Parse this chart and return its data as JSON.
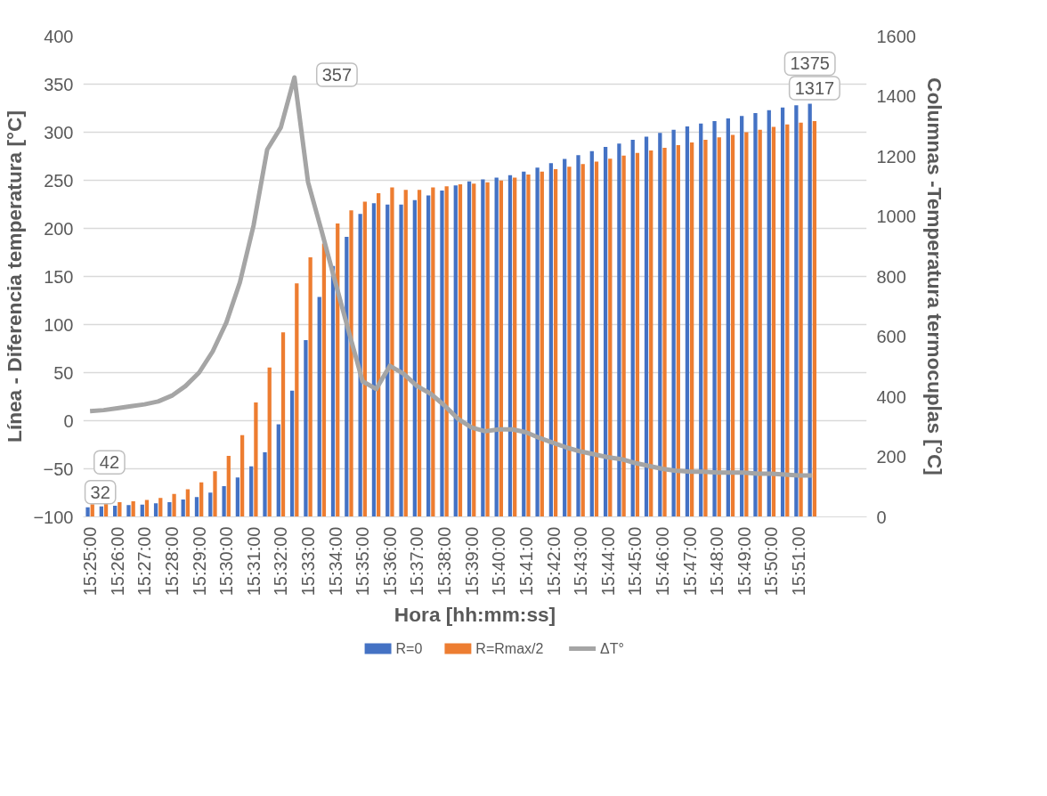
{
  "chart_data": {
    "type": "bar",
    "xlabel": "Hora [hh:mm:ss]",
    "ylabel": "Línea - Diferencia temperatura [°C]",
    "y2label": "Columnas -Temperatura termocuplas [°C]",
    "categories": [
      "15:25:00",
      null,
      "15:26:00",
      null,
      "15:27:00",
      null,
      "15:28:00",
      null,
      "15:29:00",
      null,
      "15:30:00",
      null,
      "15:31:00",
      null,
      "15:32:00",
      null,
      "15:33:00",
      null,
      "15:34:00",
      null,
      "15:35:00",
      null,
      "15:36:00",
      null,
      "15:37:00",
      null,
      "15:38:00",
      null,
      "15:39:00",
      null,
      "15:40:00",
      null,
      "15:41:00",
      null,
      "15:42:00",
      null,
      "15:43:00",
      null,
      "15:44:00",
      null,
      "15:45:00",
      null,
      "15:46:00",
      null,
      "15:47:00",
      null,
      "15:48:00",
      null,
      "15:49:00",
      null,
      "15:50:00",
      null,
      "15:51:00",
      null
    ],
    "series": [
      {
        "name": "R=0",
        "axis": "y2",
        "color": "#4472c4",
        "values": [
          32,
          35,
          37,
          39,
          41,
          45,
          49,
          58,
          66,
          81,
          102,
          131,
          168,
          215,
          308,
          420,
          588,
          732,
          835,
          932,
          1008,
          1044,
          1039,
          1039,
          1054,
          1070,
          1086,
          1103,
          1116,
          1123,
          1129,
          1137,
          1149,
          1162,
          1177,
          1191,
          1204,
          1217,
          1231,
          1242,
          1255,
          1265,
          1278,
          1288,
          1299,
          1309,
          1317,
          1326,
          1334,
          1344,
          1353,
          1362,
          1370,
          1375
        ],
        "value_labels": [
          "32",
          null,
          null,
          null,
          null,
          null,
          null,
          null,
          null,
          null,
          null,
          null,
          null,
          null,
          null,
          null,
          null,
          null,
          null,
          null,
          null,
          null,
          null,
          null,
          null,
          null,
          null,
          null,
          null,
          null,
          null,
          null,
          null,
          null,
          null,
          null,
          null,
          null,
          null,
          null,
          null,
          null,
          null,
          null,
          null,
          null,
          null,
          null,
          null,
          null,
          null,
          null,
          null,
          "1375"
        ]
      },
      {
        "name": "R=Rmax/2",
        "axis": "y2",
        "color": "#ed7d31",
        "values": [
          42,
          45,
          49,
          52,
          56,
          63,
          76,
          92,
          115,
          152,
          203,
          272,
          381,
          497,
          614,
          777,
          864,
          910,
          976,
          1020,
          1049,
          1077,
          1096,
          1088,
          1088,
          1096,
          1100,
          1107,
          1109,
          1113,
          1119,
          1129,
          1139,
          1149,
          1157,
          1165,
          1174,
          1182,
          1192,
          1202,
          1211,
          1219,
          1228,
          1237,
          1246,
          1255,
          1263,
          1271,
          1280,
          1288,
          1298,
          1306,
          1312,
          1317
        ],
        "value_labels": [
          "42",
          null,
          null,
          null,
          null,
          null,
          null,
          null,
          null,
          null,
          null,
          null,
          null,
          null,
          null,
          null,
          null,
          null,
          null,
          null,
          null,
          null,
          null,
          null,
          null,
          null,
          null,
          null,
          null,
          null,
          null,
          null,
          null,
          null,
          null,
          null,
          null,
          null,
          null,
          null,
          null,
          null,
          null,
          null,
          null,
          null,
          null,
          null,
          null,
          null,
          null,
          null,
          null,
          "1317"
        ]
      },
      {
        "name": "ΔT°",
        "type": "line",
        "color": "#a5a5a5",
        "values": [
          10,
          11,
          13,
          15,
          17,
          20,
          26,
          36,
          50,
          72,
          102,
          144,
          203,
          282,
          305,
          357,
          248,
          197,
          144,
          92,
          41,
          33,
          57,
          49,
          36,
          28,
          16,
          2,
          -7,
          -11,
          -9,
          -9,
          -12,
          -18,
          -23,
          -28,
          -32,
          -35,
          -38,
          -40,
          -44,
          -47,
          -50,
          -52,
          -53,
          -53,
          -54,
          -54,
          -54,
          -55,
          -55,
          -56,
          -57,
          -57
        ],
        "value_labels": [
          null,
          null,
          null,
          null,
          null,
          null,
          null,
          null,
          null,
          null,
          null,
          null,
          null,
          null,
          null,
          "357",
          null,
          null,
          null,
          null,
          null,
          null,
          null,
          null,
          null,
          null,
          null,
          null,
          null,
          null,
          null,
          null,
          null,
          null,
          null,
          null,
          null,
          null,
          null,
          null,
          null,
          null,
          null,
          null,
          null,
          null,
          null,
          null,
          null,
          null,
          null,
          null,
          null,
          null
        ]
      }
    ],
    "ylim": [
      -100,
      400
    ],
    "yticks": [
      -100,
      -50,
      0,
      50,
      100,
      150,
      200,
      250,
      300,
      350,
      400
    ],
    "y2lim": [
      0,
      1600
    ],
    "y2ticks": [
      0,
      200,
      400,
      600,
      800,
      1000,
      1200,
      1400,
      1600
    ],
    "grid": "y",
    "legend": "bottom",
    "marker": "none",
    "line_style": "solid"
  }
}
